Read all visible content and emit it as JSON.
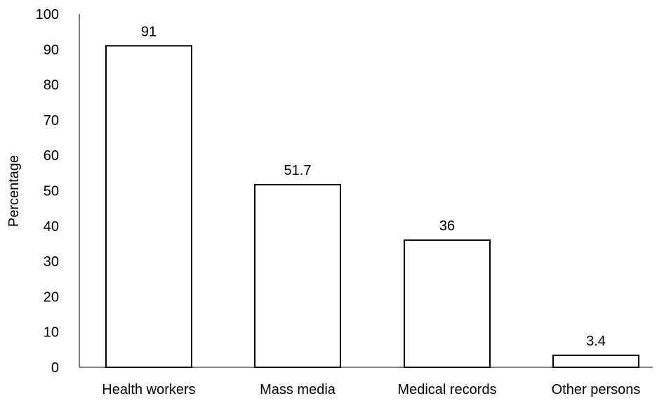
{
  "chart_data": {
    "type": "bar",
    "title": "",
    "xlabel": "",
    "ylabel": "Percentage",
    "categories": [
      "Health workers",
      "Mass media",
      "Medical records",
      "Other persons"
    ],
    "values": [
      91,
      51.7,
      36,
      3.4
    ],
    "data_labels": [
      "91",
      "51.7",
      "36",
      "3.4"
    ],
    "ylim": [
      0,
      100
    ],
    "yticks": [
      0,
      10,
      20,
      30,
      40,
      50,
      60,
      70,
      80,
      90,
      100
    ],
    "grid": false,
    "legend": "none",
    "bar_fill": "#ffffff",
    "bar_stroke": "#000000"
  }
}
